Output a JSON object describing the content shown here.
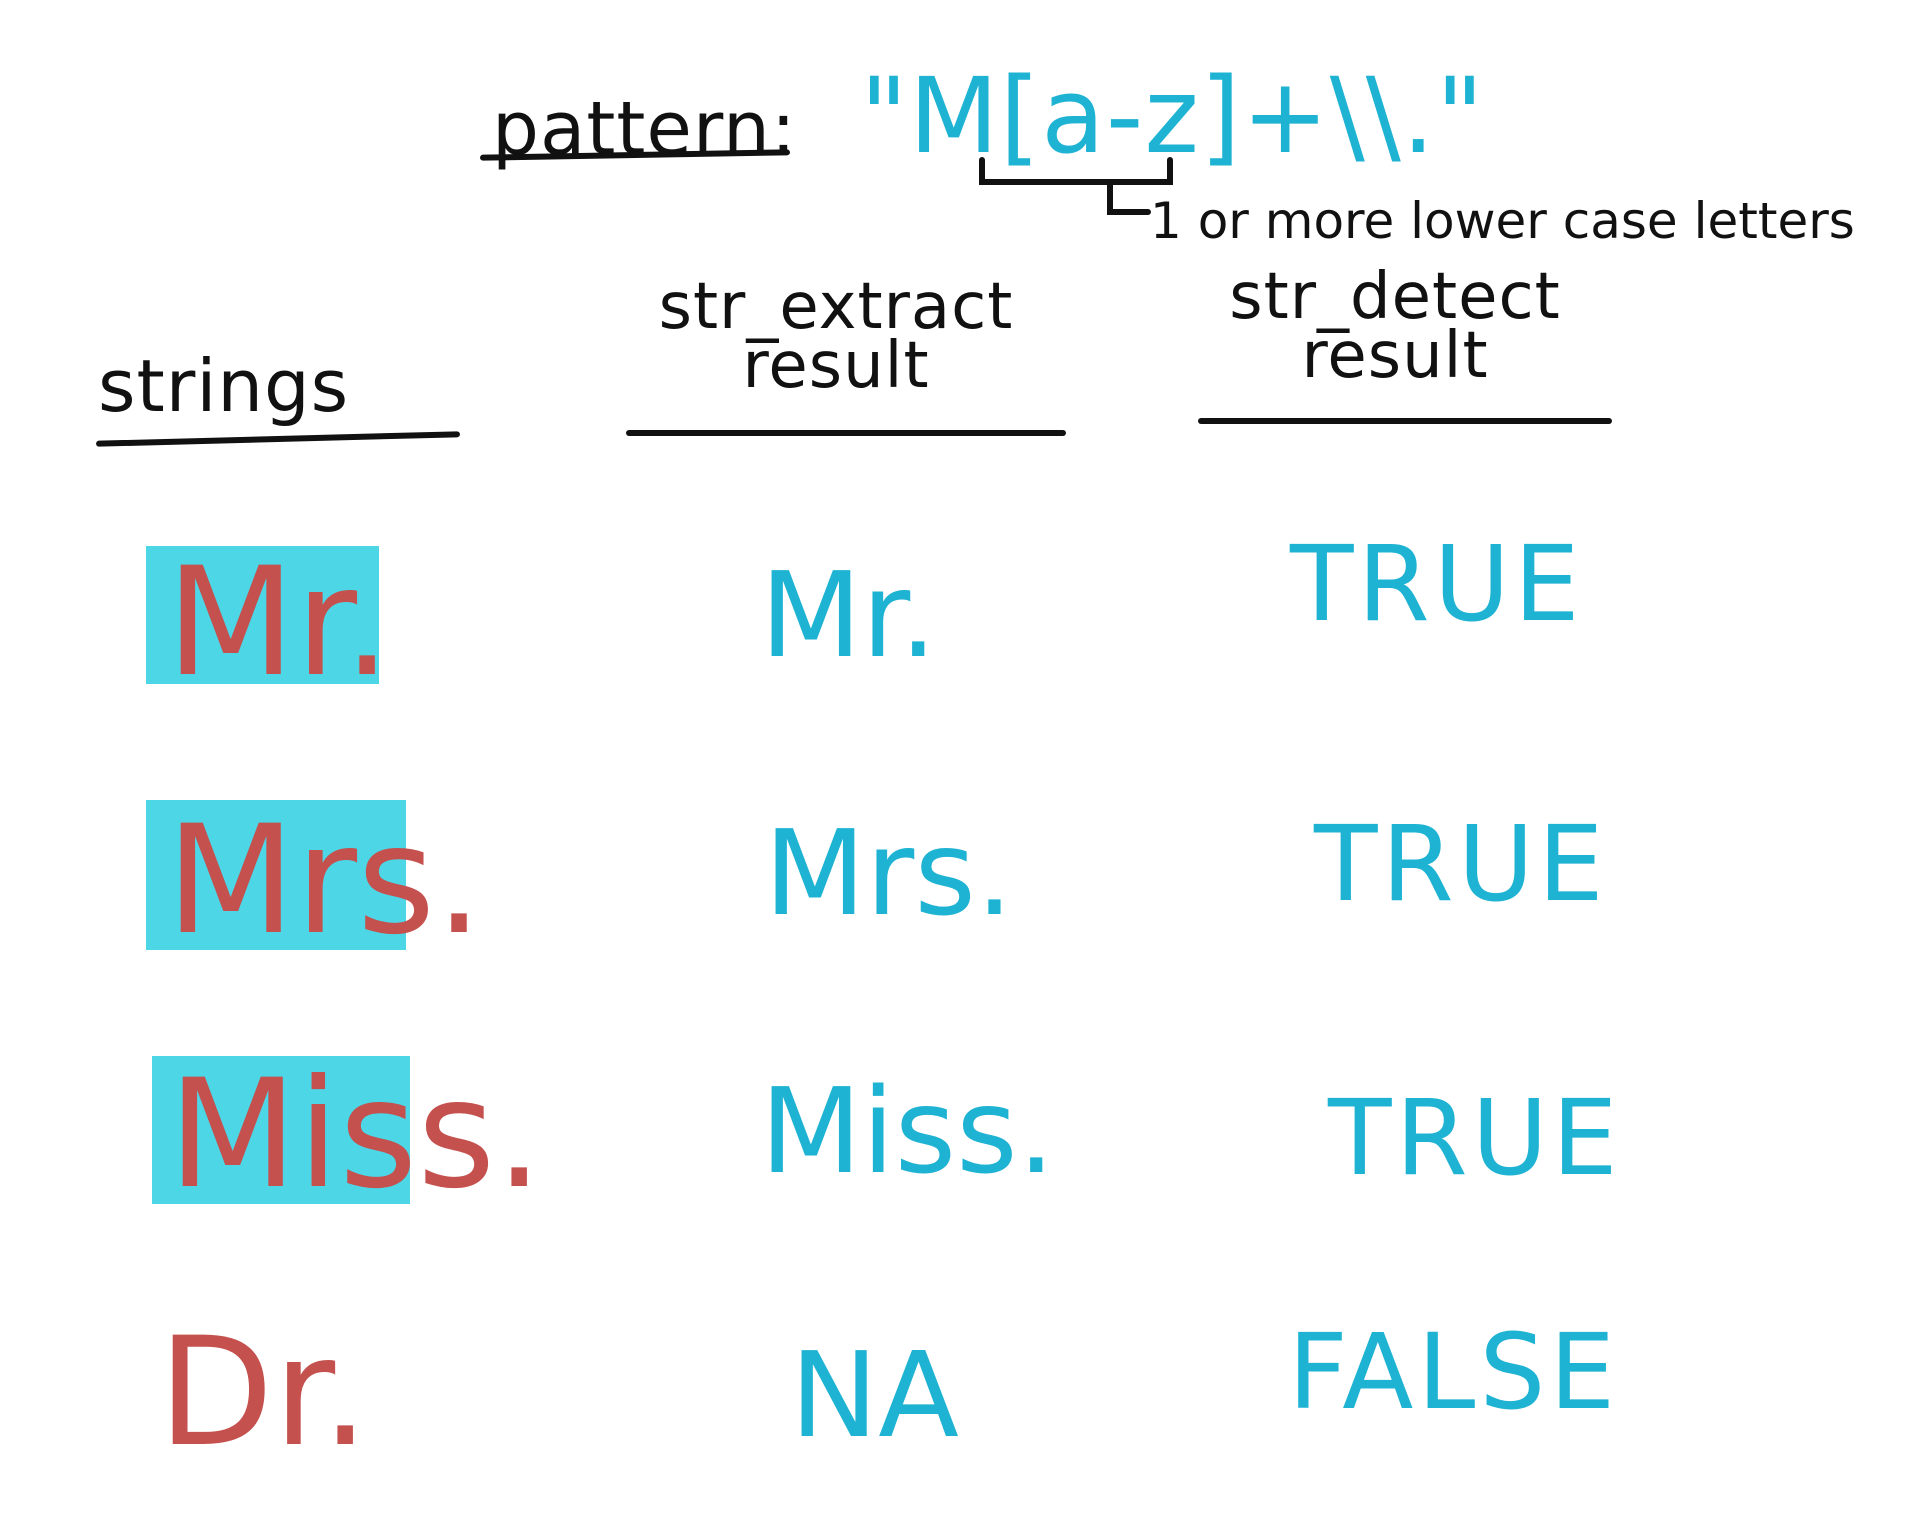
{
  "pattern": {
    "label": "pattern:",
    "value": "\"M[a-z]+\\\\.\"",
    "annotation": "1 or more lower case letters"
  },
  "headers": {
    "strings": "strings",
    "extract_top": "str_extract",
    "extract_bottom": "result",
    "detect_top": "str_detect",
    "detect_bottom": "result"
  },
  "rows": [
    {
      "string": "Mr.",
      "extract": "Mr.",
      "detect": "TRUE",
      "highlighted": true
    },
    {
      "string": "Mrs.",
      "extract": "Mrs.",
      "detect": "TRUE",
      "highlighted": true
    },
    {
      "string": "Miss.",
      "extract": "Miss.",
      "detect": "TRUE",
      "highlighted": true
    },
    {
      "string": "Dr.",
      "extract": "NA",
      "detect": "FALSE",
      "highlighted": false
    }
  ],
  "colors": {
    "ink": "#111111",
    "result": "#1fb3d3",
    "string": "#c4514e",
    "highlight": "#4dd6e6"
  }
}
